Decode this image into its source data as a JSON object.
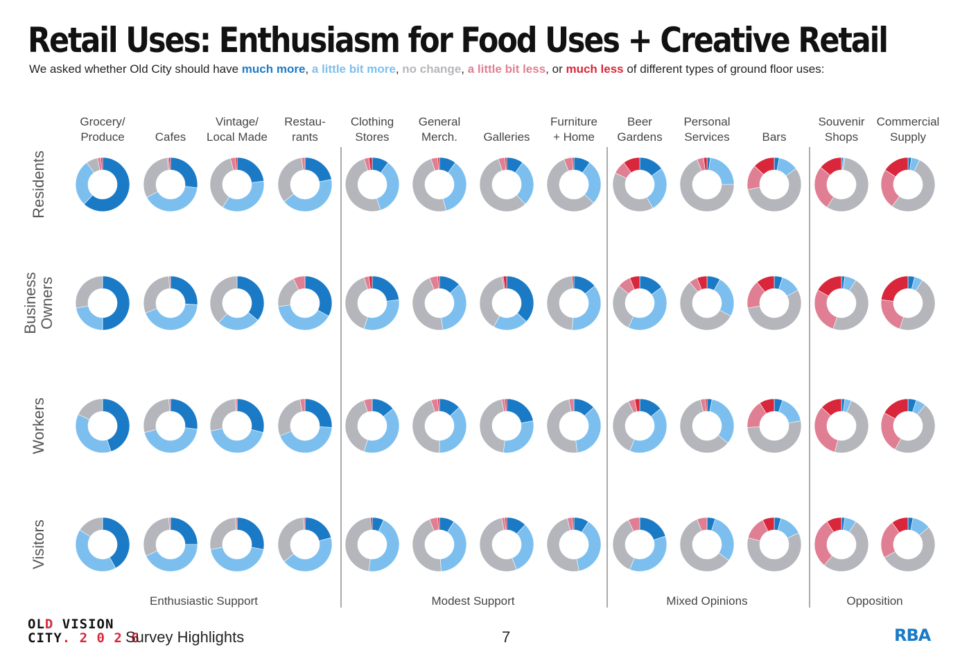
{
  "header": {
    "title": "Retail Uses: Enthusiasm for Food Uses + Creative Retail",
    "subtitle": {
      "prefix": "We asked whether Old City should have ",
      "much_more": "much more",
      "sep1": ", ",
      "little_more": "a little bit more",
      "sep2": ", ",
      "no_change": "no change",
      "sep3": ", ",
      "little_less": "a little bit less",
      "sep4": ", or ",
      "much_less": "much less",
      "suffix": " of different types of ground floor uses:"
    }
  },
  "footer": {
    "logo_line1_black": "OL",
    "logo_line1_red": "D ",
    "logo_line1_vision": "VISION",
    "logo_line2_city": "CITY",
    "logo_line2_dot": ".",
    "logo_line2_year": " 2 0 2 6",
    "text": "Survey Highlights",
    "page_number": "7",
    "brand": "RBA"
  },
  "colors": {
    "much_more": "#1a7ac6",
    "little_more": "#7cbfef",
    "no_change": "#b4b6bb",
    "little_less": "#e07f93",
    "much_less": "#d9263a"
  },
  "chart_data": {
    "type": "donut-grid",
    "value_order": [
      "much_more",
      "little_more",
      "no_change",
      "little_less",
      "much_less"
    ],
    "columns": [
      {
        "label": [
          "Grocery/",
          "Produce"
        ]
      },
      {
        "label": [
          "",
          "Cafes"
        ]
      },
      {
        "label": [
          "Vintage/",
          "Local Made"
        ]
      },
      {
        "label": [
          "Restau-",
          "rants"
        ]
      },
      {
        "label": [
          "Clothing",
          "Stores"
        ]
      },
      {
        "label": [
          "General",
          "Merch."
        ]
      },
      {
        "label": [
          "",
          "Galleries"
        ]
      },
      {
        "label": [
          "Furniture",
          "+ Home"
        ]
      },
      {
        "label": [
          "Beer",
          "Gardens"
        ]
      },
      {
        "label": [
          "Personal",
          "Services"
        ]
      },
      {
        "label": [
          "",
          "Bars"
        ]
      },
      {
        "label": [
          "Souvenir",
          "Shops"
        ]
      },
      {
        "label": [
          "Commercial",
          "Supply"
        ]
      }
    ],
    "rows": [
      {
        "label": [
          "Residents"
        ],
        "values": [
          [
            62,
            28,
            7,
            2,
            1
          ],
          [
            27,
            40,
            31,
            1,
            1
          ],
          [
            23,
            36,
            37,
            3,
            1
          ],
          [
            22,
            42,
            34,
            2,
            0
          ],
          [
            10,
            35,
            50,
            3,
            2
          ],
          [
            10,
            36,
            49,
            4,
            1
          ],
          [
            10,
            28,
            57,
            4,
            1
          ],
          [
            10,
            27,
            57,
            5,
            1
          ],
          [
            15,
            27,
            40,
            8,
            10
          ],
          [
            2,
            23,
            69,
            4,
            2
          ],
          [
            3,
            12,
            57,
            15,
            13
          ],
          [
            1,
            1,
            57,
            27,
            14
          ],
          [
            2,
            5,
            53,
            24,
            16
          ]
        ]
      },
      {
        "label": [
          "Business",
          "Owners"
        ],
        "values": [
          [
            50,
            22,
            28,
            0,
            0
          ],
          [
            26,
            43,
            30,
            1,
            0
          ],
          [
            36,
            26,
            38,
            0,
            0
          ],
          [
            33,
            40,
            20,
            7,
            0
          ],
          [
            23,
            32,
            40,
            3,
            2
          ],
          [
            13,
            35,
            46,
            5,
            1
          ],
          [
            37,
            21,
            39,
            1,
            2
          ],
          [
            14,
            37,
            48,
            0,
            1
          ],
          [
            15,
            42,
            29,
            8,
            6
          ],
          [
            8,
            25,
            56,
            5,
            6
          ],
          [
            5,
            12,
            55,
            17,
            11
          ],
          [
            2,
            7,
            46,
            28,
            17
          ],
          [
            4,
            5,
            46,
            22,
            23
          ]
        ]
      },
      {
        "label": [
          "Workers"
        ],
        "values": [
          [
            45,
            37,
            18,
            0,
            0
          ],
          [
            27,
            44,
            28,
            1,
            0
          ],
          [
            29,
            43,
            27,
            1,
            0
          ],
          [
            26,
            43,
            28,
            3,
            0
          ],
          [
            14,
            41,
            40,
            5,
            0
          ],
          [
            13,
            37,
            45,
            4,
            1
          ],
          [
            22,
            30,
            45,
            2,
            1
          ],
          [
            13,
            35,
            49,
            3,
            0
          ],
          [
            14,
            42,
            37,
            4,
            3
          ],
          [
            3,
            33,
            60,
            3,
            1
          ],
          [
            5,
            17,
            52,
            17,
            9
          ],
          [
            2,
            4,
            48,
            33,
            13
          ],
          [
            5,
            6,
            47,
            25,
            17
          ]
        ]
      },
      {
        "label": [
          "Visitors"
        ],
        "values": [
          [
            42,
            42,
            16,
            0,
            0
          ],
          [
            25,
            43,
            31,
            1,
            0
          ],
          [
            28,
            44,
            27,
            1,
            0
          ],
          [
            21,
            43,
            35,
            1,
            0
          ],
          [
            7,
            45,
            47,
            0,
            1
          ],
          [
            9,
            40,
            45,
            5,
            1
          ],
          [
            12,
            32,
            53,
            2,
            1
          ],
          [
            9,
            38,
            49,
            3,
            1
          ],
          [
            20,
            36,
            37,
            7,
            0
          ],
          [
            5,
            30,
            59,
            6,
            0
          ],
          [
            4,
            14,
            61,
            14,
            7
          ],
          [
            2,
            7,
            52,
            30,
            9
          ],
          [
            3,
            11,
            53,
            23,
            10
          ]
        ]
      }
    ],
    "groups": [
      {
        "label": "Enthusiastic Support",
        "start": 0,
        "end": 3
      },
      {
        "label": "Modest Support",
        "start": 4,
        "end": 7
      },
      {
        "label": "Mixed Opinions",
        "start": 8,
        "end": 10
      },
      {
        "label": "Opposition",
        "start": 11,
        "end": 12
      }
    ]
  }
}
